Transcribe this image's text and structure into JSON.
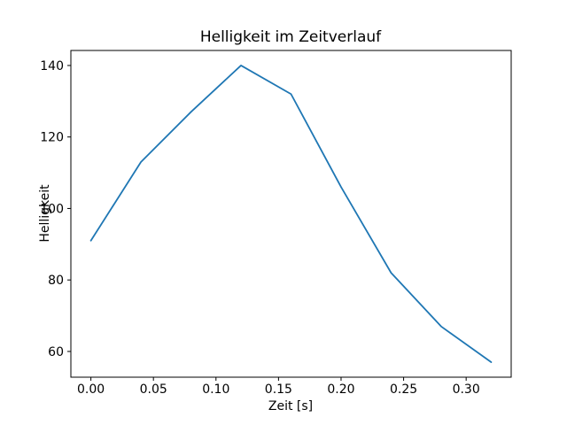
{
  "figure": {
    "background": "#ffffff"
  },
  "chart_data": {
    "type": "line",
    "title": "Helligkeit im Zeitverlauf",
    "xlabel": "Zeit [s]",
    "ylabel": "Helligkeit",
    "x": [
      0.0,
      0.04,
      0.08,
      0.12,
      0.16,
      0.2,
      0.24,
      0.28,
      0.32
    ],
    "y": [
      91,
      113,
      127,
      140,
      132,
      106,
      82,
      67,
      57
    ],
    "xlim": [
      -0.016,
      0.336
    ],
    "ylim": [
      52.8,
      144.2
    ],
    "xticks": [
      0.0,
      0.05,
      0.1,
      0.15,
      0.2,
      0.25,
      0.3
    ],
    "xtick_labels": [
      "0.00",
      "0.05",
      "0.10",
      "0.15",
      "0.20",
      "0.25",
      "0.30"
    ],
    "yticks": [
      60,
      80,
      100,
      120,
      140
    ],
    "ytick_labels": [
      "60",
      "80",
      "100",
      "120",
      "140"
    ],
    "grid": false,
    "legend_position": "none",
    "line_color": "#1f77b4",
    "line_width": 1.8,
    "spine_color": "#000000",
    "background_color": "#ffffff"
  }
}
